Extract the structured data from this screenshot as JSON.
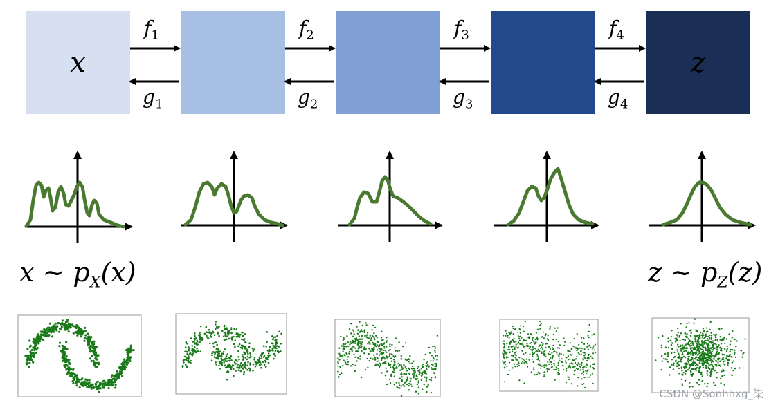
{
  "boxes": [
    {
      "label": "x",
      "color": "#d6e0f1"
    },
    {
      "label": "",
      "color": "#a7bfe3"
    },
    {
      "label": "",
      "color": "#7f9fd5"
    },
    {
      "label": "",
      "color": "#22498a"
    },
    {
      "label": "z",
      "color": "#1b2e56"
    }
  ],
  "arrows": {
    "forward": [
      {
        "name": "f",
        "sub": "1"
      },
      {
        "name": "f",
        "sub": "2"
      },
      {
        "name": "f",
        "sub": "3"
      },
      {
        "name": "f",
        "sub": "4"
      }
    ],
    "backward": [
      {
        "name": "g",
        "sub": "1"
      },
      {
        "name": "g",
        "sub": "2"
      },
      {
        "name": "g",
        "sub": "3"
      },
      {
        "name": "g",
        "sub": "4"
      }
    ]
  },
  "formulas": {
    "left": {
      "pre": "x ~ p",
      "sub": "X",
      "post": "(x)"
    },
    "right": {
      "pre": "z ~ p",
      "sub": "Z",
      "post": "(z)"
    }
  },
  "curve_color": "#4a7a30",
  "scatter_color": "#1a7a1a",
  "watermark": "CSDN @Sonhhxg_柒"
}
